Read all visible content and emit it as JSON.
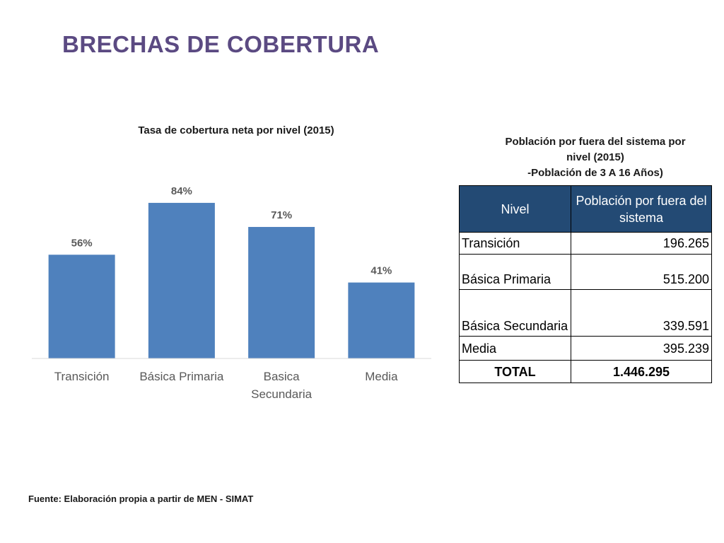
{
  "slide": {
    "title": "BRECHAS DE COBERTURA",
    "source": "Fuente: Elaboración propia a partir de MEN - SIMAT"
  },
  "chart_data": {
    "type": "bar",
    "title": "Tasa de cobertura neta por nivel (2015)",
    "categories": [
      "Transición",
      "Básica Primaria",
      "Basica Secundaria",
      "Media"
    ],
    "values": [
      56,
      84,
      71,
      41
    ],
    "data_labels": [
      "56%",
      "84%",
      "71%",
      "41%"
    ],
    "ylim": [
      0,
      100
    ],
    "grid": false,
    "bar_color": "#4f81bd",
    "xlabel": "",
    "ylabel": ""
  },
  "table": {
    "caption_lines": [
      "Población por fuera del sistema por",
      "nivel (2015)",
      "-Población de 3 A 16 Años)"
    ],
    "headers": [
      "Nivel",
      "Población por fuera del sistema"
    ],
    "header_color": "#234a74",
    "rows": [
      {
        "nivel": "Transición",
        "poblacion": "196.265"
      },
      {
        "nivel": "Básica Primaria",
        "poblacion": "515.200"
      },
      {
        "nivel": "Básica Secundaria",
        "poblacion": "339.591"
      },
      {
        "nivel": "Media",
        "poblacion": "395.239"
      }
    ],
    "total": {
      "label": "TOTAL",
      "value": "1.446.295"
    }
  }
}
